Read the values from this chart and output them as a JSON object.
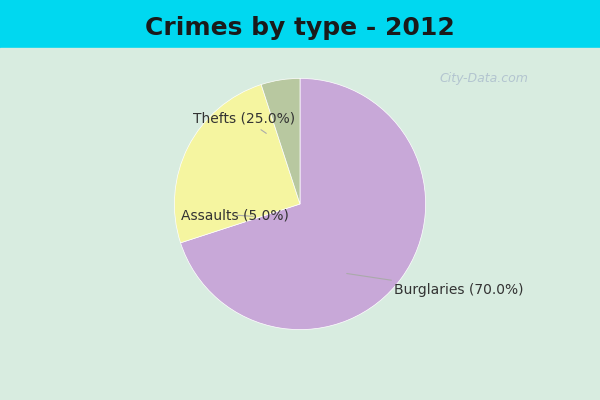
{
  "title": "Crimes by type - 2012",
  "slices": [
    {
      "label": "Burglaries (70.0%)",
      "value": 70.0,
      "color": "#c8a8d8"
    },
    {
      "label": "Thefts (25.0%)",
      "value": 25.0,
      "color": "#f5f5a0"
    },
    {
      "label": "Assaults (5.0%)",
      "value": 5.0,
      "color": "#b8c8a0"
    }
  ],
  "background_color_outer": "#00d8f0",
  "background_color_inner": "#d8ece0",
  "title_fontsize": 18,
  "label_fontsize": 10,
  "watermark": "City-Data.com"
}
